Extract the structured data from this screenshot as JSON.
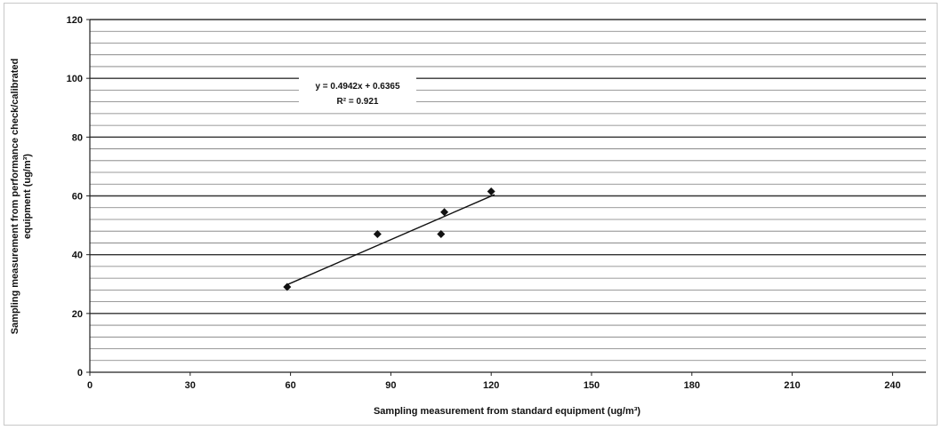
{
  "chart_data": {
    "type": "scatter",
    "title": "",
    "xlabel": "Sampling measurement from standard equipment  (ug/m³)",
    "ylabel_lines": [
      "Sampling measurement from performance check/calibrated",
      "equipment  (ug/m³)"
    ],
    "xlim": [
      0,
      250
    ],
    "ylim": [
      0,
      120
    ],
    "x_ticks": [
      "0",
      "30",
      "60",
      "90",
      "120",
      "150",
      "180",
      "210",
      "240"
    ],
    "y_ticks": [
      "0",
      "20",
      "40",
      "60",
      "80",
      "100",
      "120"
    ],
    "grid": true,
    "series": [
      {
        "marker": "diamond",
        "color": "#111111",
        "x": [
          59,
          86,
          105,
          106,
          120
        ],
        "y": [
          29,
          47,
          47,
          54.5,
          61.5
        ]
      }
    ],
    "trendline": {
      "type": "linear",
      "x_range": [
        59,
        121
      ],
      "slope": 0.4942,
      "intercept": 0.6365
    },
    "annotations": {
      "equation": "y = 0.4942x + 0.6365",
      "r_squared": "R² = 0.921"
    }
  }
}
